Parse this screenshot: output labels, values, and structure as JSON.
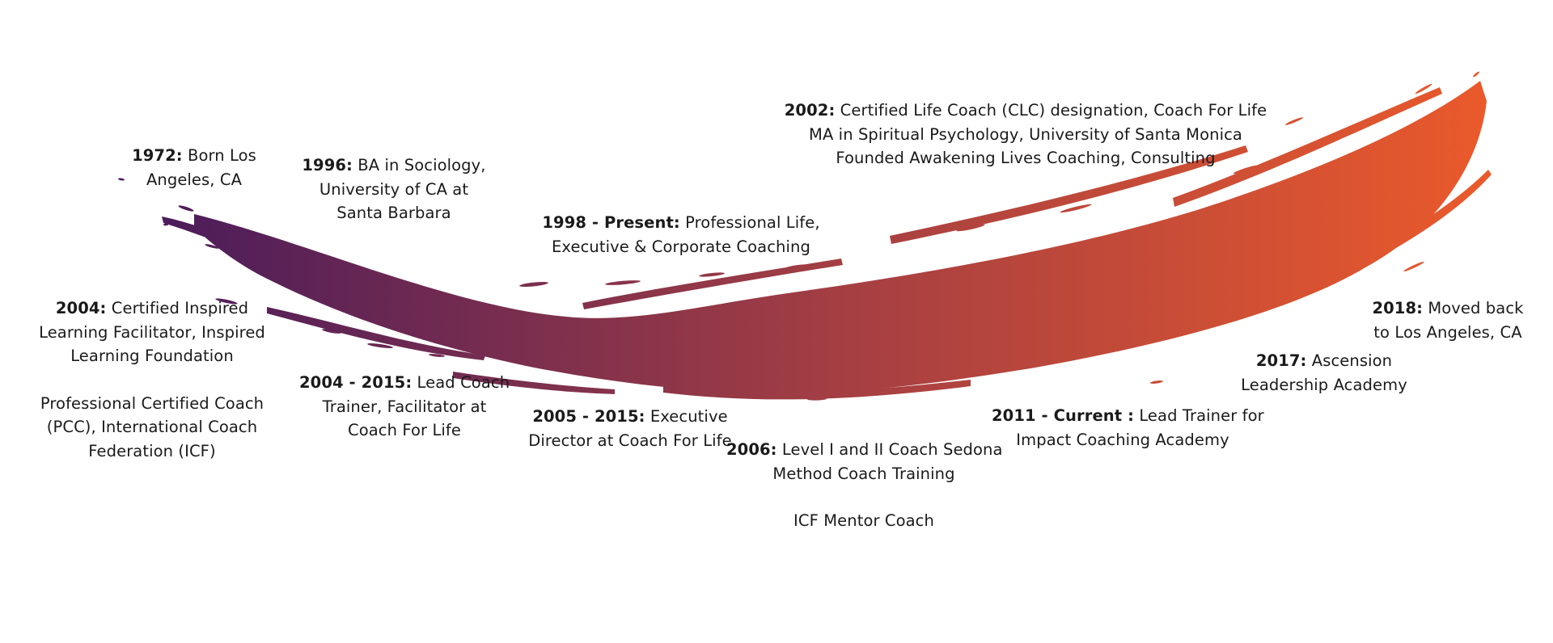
{
  "theme": {
    "gradient_start": "#4b1c5b",
    "gradient_mid": "#a33e43",
    "gradient_end": "#eb5a2b",
    "text_color": "#1a1a1a"
  },
  "entries": [
    {
      "id": "1972",
      "year": "1972:",
      "lines": [
        "Born Los",
        "Angeles, CA"
      ]
    },
    {
      "id": "1996",
      "year": "1996:",
      "lines": [
        "BA in Sociology,",
        "University of CA at",
        "Santa Barbara"
      ]
    },
    {
      "id": "1998",
      "year": "1998 - Present:",
      "lines": [
        "Professional Life,",
        "Executive & Corporate Coaching"
      ]
    },
    {
      "id": "2002",
      "year": "2002:",
      "lines": [
        "Certified Life Coach (CLC) designation, Coach For Life",
        "MA in Spiritual Psychology, University of Santa Monica",
        "Founded Awakening Lives Coaching, Consulting"
      ]
    },
    {
      "id": "2004",
      "year": "2004:",
      "lines": [
        "Certified Inspired",
        "Learning Facilitator, Inspired",
        "Learning Foundation"
      ],
      "extra_lines": [
        "Professional Certified Coach",
        "(PCC), International Coach",
        "Federation (ICF)"
      ]
    },
    {
      "id": "2004-2015",
      "year": "2004 - 2015:",
      "lines": [
        "Lead Coach",
        "Trainer, Facilitator at",
        "Coach For Life"
      ]
    },
    {
      "id": "2005-2015",
      "year": "2005 - 2015:",
      "lines": [
        "Executive",
        "Director at Coach For Life"
      ]
    },
    {
      "id": "2006",
      "year": "2006:",
      "lines": [
        "Level I and II Coach Sedona",
        "Method Coach Training"
      ],
      "extra_lines": [
        "ICF Mentor Coach"
      ]
    },
    {
      "id": "2011",
      "year": "2011 - Current :",
      "lines": [
        "Lead Trainer for",
        "Impact Coaching Academy"
      ]
    },
    {
      "id": "2017",
      "year": "2017:",
      "lines": [
        "Ascension",
        "Leadership Academy"
      ]
    },
    {
      "id": "2018",
      "year": "2018:",
      "lines": [
        "Moved back",
        "to Los Angeles, CA"
      ]
    }
  ]
}
